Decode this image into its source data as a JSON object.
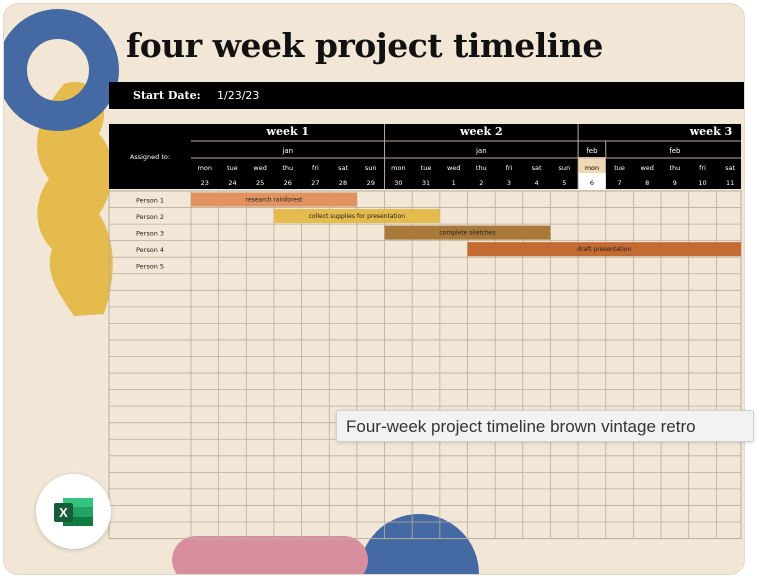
{
  "title": "four week project timeline",
  "start_date": {
    "label": "Start Date:",
    "value": "1/23/23"
  },
  "header": {
    "assigned_to": "Assigned to:"
  },
  "weeks": [
    "week 1",
    "week 2",
    "week 3"
  ],
  "months": [
    "jan",
    "jan",
    "feb",
    "feb"
  ],
  "days": [
    {
      "dow": "mon",
      "date": "23"
    },
    {
      "dow": "tue",
      "date": "24"
    },
    {
      "dow": "wed",
      "date": "25"
    },
    {
      "dow": "thu",
      "date": "26"
    },
    {
      "dow": "fri",
      "date": "27"
    },
    {
      "dow": "sat",
      "date": "28"
    },
    {
      "dow": "sun",
      "date": "29"
    },
    {
      "dow": "mon",
      "date": "30"
    },
    {
      "dow": "tue",
      "date": "31"
    },
    {
      "dow": "wed",
      "date": "1"
    },
    {
      "dow": "thu",
      "date": "2"
    },
    {
      "dow": "fri",
      "date": "3"
    },
    {
      "dow": "sat",
      "date": "4"
    },
    {
      "dow": "sun",
      "date": "5"
    },
    {
      "dow": "mon",
      "date": "6"
    },
    {
      "dow": "tue",
      "date": "7"
    },
    {
      "dow": "wed",
      "date": "8"
    },
    {
      "dow": "thu",
      "date": "9"
    },
    {
      "dow": "fri",
      "date": "10"
    },
    {
      "dow": "sat",
      "date": "11"
    }
  ],
  "highlight_day_index": 14,
  "people": [
    "Person 1",
    "Person 2",
    "Person 3",
    "Person 4",
    "Person 5"
  ],
  "tasks": [
    {
      "row": 0,
      "start": 0,
      "end": 5,
      "label": "research rainforest",
      "color": "#e0935e"
    },
    {
      "row": 1,
      "start": 3,
      "end": 8,
      "label": "collect supplies for presentation",
      "color": "#e4bb4c"
    },
    {
      "row": 2,
      "start": 7,
      "end": 12,
      "label": "complete sketches",
      "color": "#a8793a"
    },
    {
      "row": 3,
      "start": 10,
      "end": 19,
      "label": "draft presentation",
      "color": "#c46a33"
    }
  ],
  "tooltip": "Four-week project timeline brown vintage retro",
  "colors": {
    "background": "#f2e6d6",
    "header": "#000000",
    "highlight": "#f0d8b4",
    "grid": "#b9ad9e",
    "blue": "#4569a3",
    "yellow": "#e4bb4c",
    "pink": "#d78fa0",
    "excel_green": "#1e7a45"
  },
  "icons": {
    "app": "excel-icon"
  }
}
